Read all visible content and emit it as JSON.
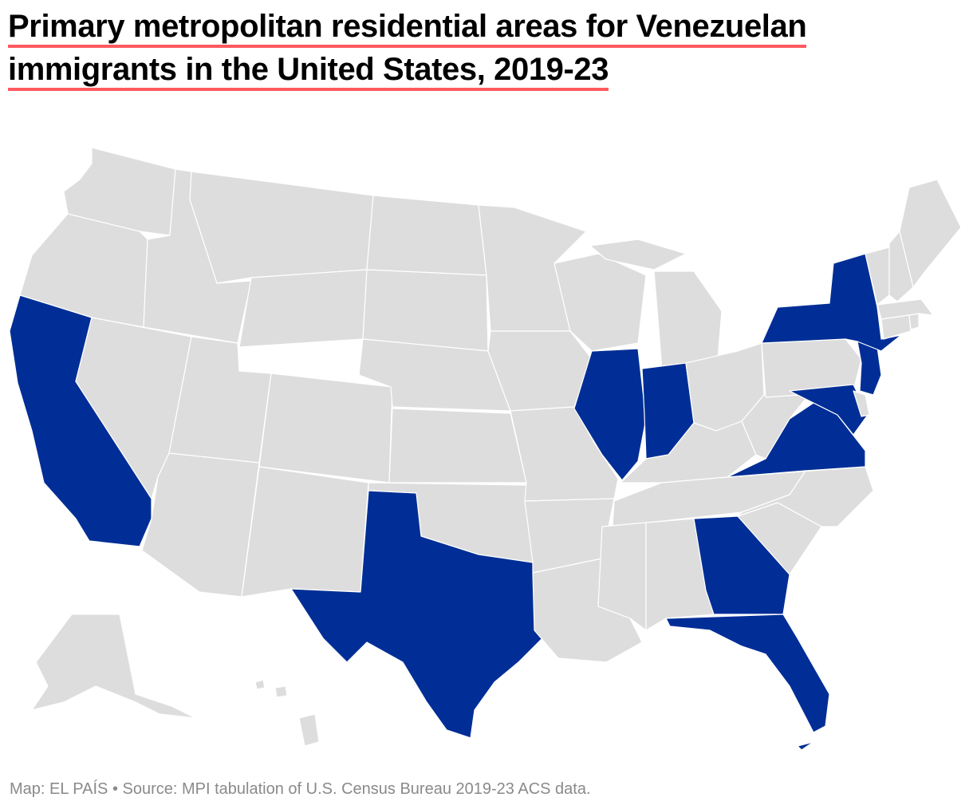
{
  "title": {
    "line1": "Primary metropolitan residential areas for Venezuelan",
    "line2": "immigrants in the United States, 2019-23"
  },
  "footer": {
    "credit": "Map: EL PAÍS",
    "separator": " • ",
    "source": "Source: MPI tabulation of U.S. Census Bureau 2019-23 ACS data."
  },
  "map": {
    "type": "choropleth",
    "region": "United States",
    "colors": {
      "highlight": "#002e96",
      "default": "#dddddd",
      "border": "#ffffff"
    },
    "highlighted_states": [
      "California",
      "Texas",
      "Illinois",
      "Indiana",
      "Georgia",
      "Florida",
      "Virginia",
      "Maryland",
      "New Jersey",
      "New York"
    ]
  }
}
